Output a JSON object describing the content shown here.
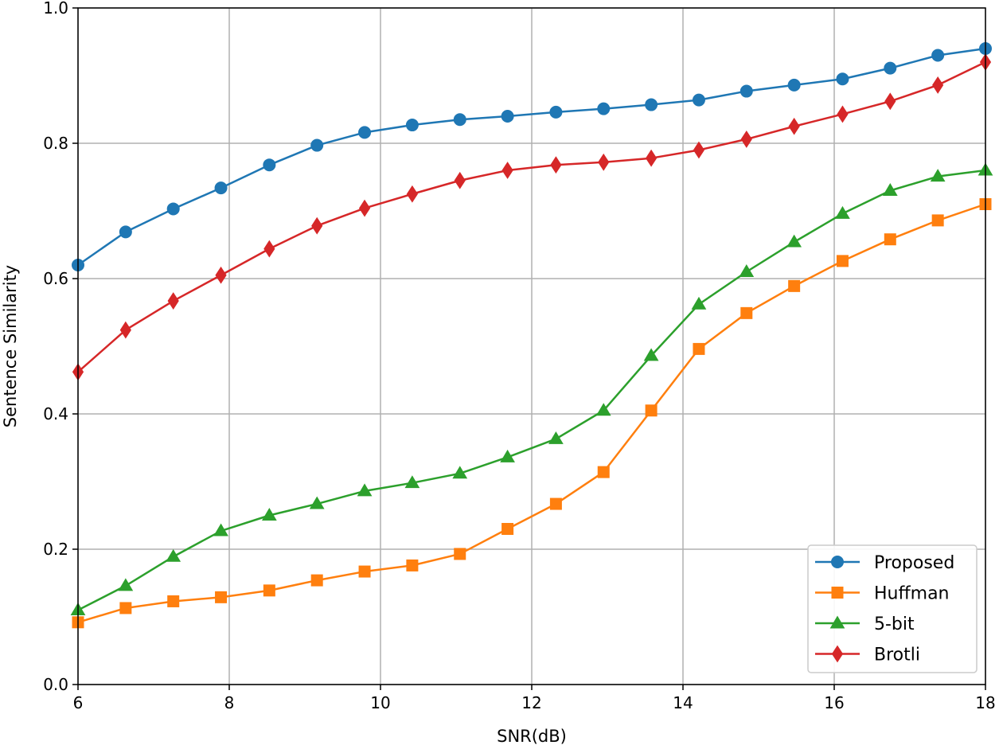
{
  "chart_data": {
    "type": "line",
    "xlabel": "SNR(dB)",
    "ylabel": "Sentence Similarity",
    "xlim": [
      6,
      18
    ],
    "ylim": [
      0,
      1
    ],
    "xticks": [
      "6",
      "8",
      "10",
      "12",
      "14",
      "16",
      "18"
    ],
    "yticks": [
      "0.0",
      "0.2",
      "0.4",
      "0.6",
      "0.8",
      "1.0"
    ],
    "grid": true,
    "legend_position": "lower-right",
    "x": [
      6.0,
      6.63,
      7.26,
      7.89,
      8.53,
      9.16,
      9.79,
      10.42,
      11.05,
      11.68,
      12.32,
      12.95,
      13.58,
      14.21,
      14.84,
      15.47,
      16.11,
      16.74,
      17.37,
      18.0
    ],
    "series": [
      {
        "name": "Proposed",
        "color": "#1f77b4",
        "marker": "circle",
        "values": [
          0.62,
          0.669,
          0.703,
          0.734,
          0.768,
          0.797,
          0.816,
          0.827,
          0.835,
          0.84,
          0.846,
          0.851,
          0.857,
          0.864,
          0.877,
          0.886,
          0.895,
          0.911,
          0.93,
          0.94
        ]
      },
      {
        "name": "Huffman",
        "color": "#ff7f0e",
        "marker": "square",
        "values": [
          0.092,
          0.113,
          0.123,
          0.129,
          0.139,
          0.154,
          0.167,
          0.176,
          0.193,
          0.23,
          0.267,
          0.314,
          0.405,
          0.496,
          0.549,
          0.589,
          0.626,
          0.658,
          0.686,
          0.71
        ]
      },
      {
        "name": "5-bit",
        "color": "#2ca02c",
        "marker": "triangle",
        "values": [
          0.11,
          0.146,
          0.189,
          0.227,
          0.25,
          0.267,
          0.286,
          0.298,
          0.312,
          0.336,
          0.363,
          0.405,
          0.486,
          0.562,
          0.61,
          0.654,
          0.696,
          0.73,
          0.751,
          0.76
        ]
      },
      {
        "name": "Brotli",
        "color": "#d62728",
        "marker": "diamond",
        "values": [
          0.462,
          0.524,
          0.567,
          0.605,
          0.644,
          0.678,
          0.704,
          0.725,
          0.745,
          0.76,
          0.768,
          0.772,
          0.778,
          0.79,
          0.806,
          0.825,
          0.843,
          0.862,
          0.886,
          0.92
        ]
      }
    ]
  }
}
